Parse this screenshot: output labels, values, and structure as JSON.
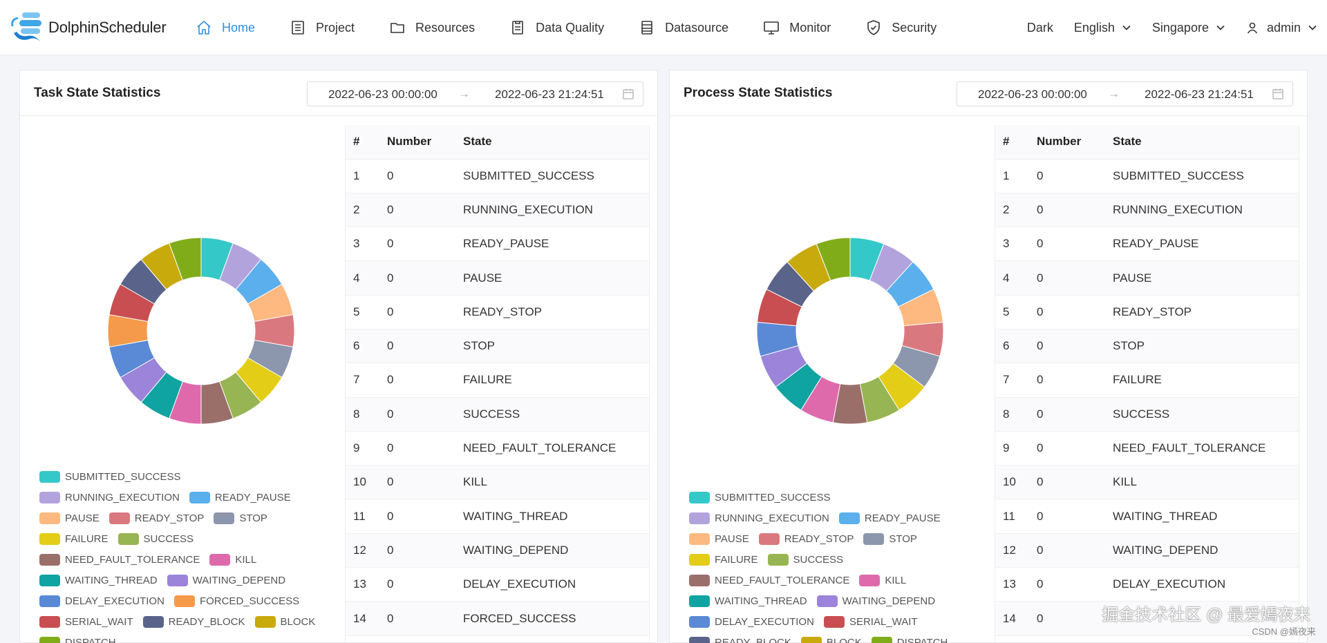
{
  "app": {
    "name": "DolphinScheduler"
  },
  "nav": [
    {
      "label": "Home",
      "icon": "home-icon",
      "active": true
    },
    {
      "label": "Project",
      "icon": "project-icon",
      "active": false
    },
    {
      "label": "Resources",
      "icon": "folder-icon",
      "active": false
    },
    {
      "label": "Data Quality",
      "icon": "data-quality-icon",
      "active": false
    },
    {
      "label": "Datasource",
      "icon": "datasource-icon",
      "active": false
    },
    {
      "label": "Monitor",
      "icon": "monitor-icon",
      "active": false
    },
    {
      "label": "Security",
      "icon": "shield-icon",
      "active": false
    }
  ],
  "right_nav": {
    "theme": "Dark",
    "language": "English",
    "timezone": "Singapore",
    "user": "admin"
  },
  "colors": {
    "accent": "#2f8ee0",
    "SUBMITTED_SUCCESS": "#35c8c8",
    "RUNNING_EXECUTION": "#b2a3dd",
    "READY_PAUSE": "#5aafec",
    "PAUSE": "#fdb97f",
    "READY_STOP": "#d9797f",
    "STOP": "#8c96ad",
    "FAILURE": "#e3cd16",
    "SUCCESS": "#97b552",
    "NEED_FAULT_TOLERANCE": "#9a6f6a",
    "KILL": "#de6aac",
    "WAITING_THREAD": "#0fa3a1",
    "WAITING_DEPEND": "#9b84d9",
    "DELAY_EXECUTION": "#5a89d6",
    "FORCED_SUCCESS": "#f59a4b",
    "SERIAL_WAIT": "#c84e51",
    "READY_BLOCK": "#5a6389",
    "BLOCK": "#c8aa0c",
    "DISPATCH": "#81ac1a"
  },
  "task_panel": {
    "title": "Task State Statistics",
    "start": "2022-06-23 00:00:00",
    "end": "2022-06-23 21:24:51",
    "legend": [
      "SUBMITTED_SUCCESS",
      "RUNNING_EXECUTION",
      "READY_PAUSE",
      "PAUSE",
      "READY_STOP",
      "STOP",
      "FAILURE",
      "SUCCESS",
      "NEED_FAULT_TOLERANCE",
      "KILL",
      "WAITING_THREAD",
      "WAITING_DEPEND",
      "DELAY_EXECUTION",
      "FORCED_SUCCESS",
      "SERIAL_WAIT",
      "READY_BLOCK",
      "BLOCK",
      "DISPATCH"
    ],
    "table_headers": [
      "#",
      "Number",
      "State"
    ],
    "rows": [
      [
        "1",
        "0",
        "SUBMITTED_SUCCESS"
      ],
      [
        "2",
        "0",
        "RUNNING_EXECUTION"
      ],
      [
        "3",
        "0",
        "READY_PAUSE"
      ],
      [
        "4",
        "0",
        "PAUSE"
      ],
      [
        "5",
        "0",
        "READY_STOP"
      ],
      [
        "6",
        "0",
        "STOP"
      ],
      [
        "7",
        "0",
        "FAILURE"
      ],
      [
        "8",
        "0",
        "SUCCESS"
      ],
      [
        "9",
        "0",
        "NEED_FAULT_TOLERANCE"
      ],
      [
        "10",
        "0",
        "KILL"
      ],
      [
        "11",
        "0",
        "WAITING_THREAD"
      ],
      [
        "12",
        "0",
        "WAITING_DEPEND"
      ],
      [
        "13",
        "0",
        "DELAY_EXECUTION"
      ],
      [
        "14",
        "0",
        "FORCED_SUCCESS"
      ]
    ]
  },
  "process_panel": {
    "title": "Process State Statistics",
    "start": "2022-06-23 00:00:00",
    "end": "2022-06-23 21:24:51",
    "legend": [
      "SUBMITTED_SUCCESS",
      "RUNNING_EXECUTION",
      "READY_PAUSE",
      "PAUSE",
      "READY_STOP",
      "STOP",
      "FAILURE",
      "SUCCESS",
      "NEED_FAULT_TOLERANCE",
      "KILL",
      "WAITING_THREAD",
      "WAITING_DEPEND",
      "DELAY_EXECUTION",
      "SERIAL_WAIT",
      "READY_BLOCK",
      "BLOCK",
      "DISPATCH"
    ],
    "table_headers": [
      "#",
      "Number",
      "State"
    ],
    "rows": [
      [
        "1",
        "0",
        "SUBMITTED_SUCCESS"
      ],
      [
        "2",
        "0",
        "RUNNING_EXECUTION"
      ],
      [
        "3",
        "0",
        "READY_PAUSE"
      ],
      [
        "4",
        "0",
        "PAUSE"
      ],
      [
        "5",
        "0",
        "READY_STOP"
      ],
      [
        "6",
        "0",
        "STOP"
      ],
      [
        "7",
        "0",
        "FAILURE"
      ],
      [
        "8",
        "0",
        "SUCCESS"
      ],
      [
        "9",
        "0",
        "NEED_FAULT_TOLERANCE"
      ],
      [
        "10",
        "0",
        "KILL"
      ],
      [
        "11",
        "0",
        "WAITING_THREAD"
      ],
      [
        "12",
        "0",
        "WAITING_DEPEND"
      ],
      [
        "13",
        "0",
        "DELAY_EXECUTION"
      ],
      [
        "14",
        "0"
      ]
    ]
  },
  "chart_data": [
    {
      "type": "pie",
      "title": "",
      "categories": [
        "SUBMITTED_SUCCESS",
        "RUNNING_EXECUTION",
        "READY_PAUSE",
        "PAUSE",
        "READY_STOP",
        "STOP",
        "FAILURE",
        "SUCCESS",
        "NEED_FAULT_TOLERANCE",
        "KILL",
        "WAITING_THREAD",
        "WAITING_DEPEND",
        "DELAY_EXECUTION",
        "FORCED_SUCCESS",
        "SERIAL_WAIT",
        "READY_BLOCK",
        "BLOCK",
        "DISPATCH"
      ],
      "values": [
        0,
        0,
        0,
        0,
        0,
        0,
        0,
        0,
        0,
        0,
        0,
        0,
        0,
        0,
        0,
        0,
        0,
        0
      ],
      "legend": "bottom"
    },
    {
      "type": "pie",
      "title": "",
      "categories": [
        "SUBMITTED_SUCCESS",
        "RUNNING_EXECUTION",
        "READY_PAUSE",
        "PAUSE",
        "READY_STOP",
        "STOP",
        "FAILURE",
        "SUCCESS",
        "NEED_FAULT_TOLERANCE",
        "KILL",
        "WAITING_THREAD",
        "WAITING_DEPEND",
        "DELAY_EXECUTION",
        "SERIAL_WAIT",
        "READY_BLOCK",
        "BLOCK",
        "DISPATCH"
      ],
      "values": [
        0,
        0,
        0,
        0,
        0,
        0,
        0,
        0,
        0,
        0,
        0,
        0,
        0,
        0,
        0,
        0,
        0
      ],
      "legend": "bottom"
    }
  ],
  "watermark": {
    "main": "掘金技术社区 @ 最爱嫣夜来",
    "sub": "CSDN @嫣夜来"
  }
}
